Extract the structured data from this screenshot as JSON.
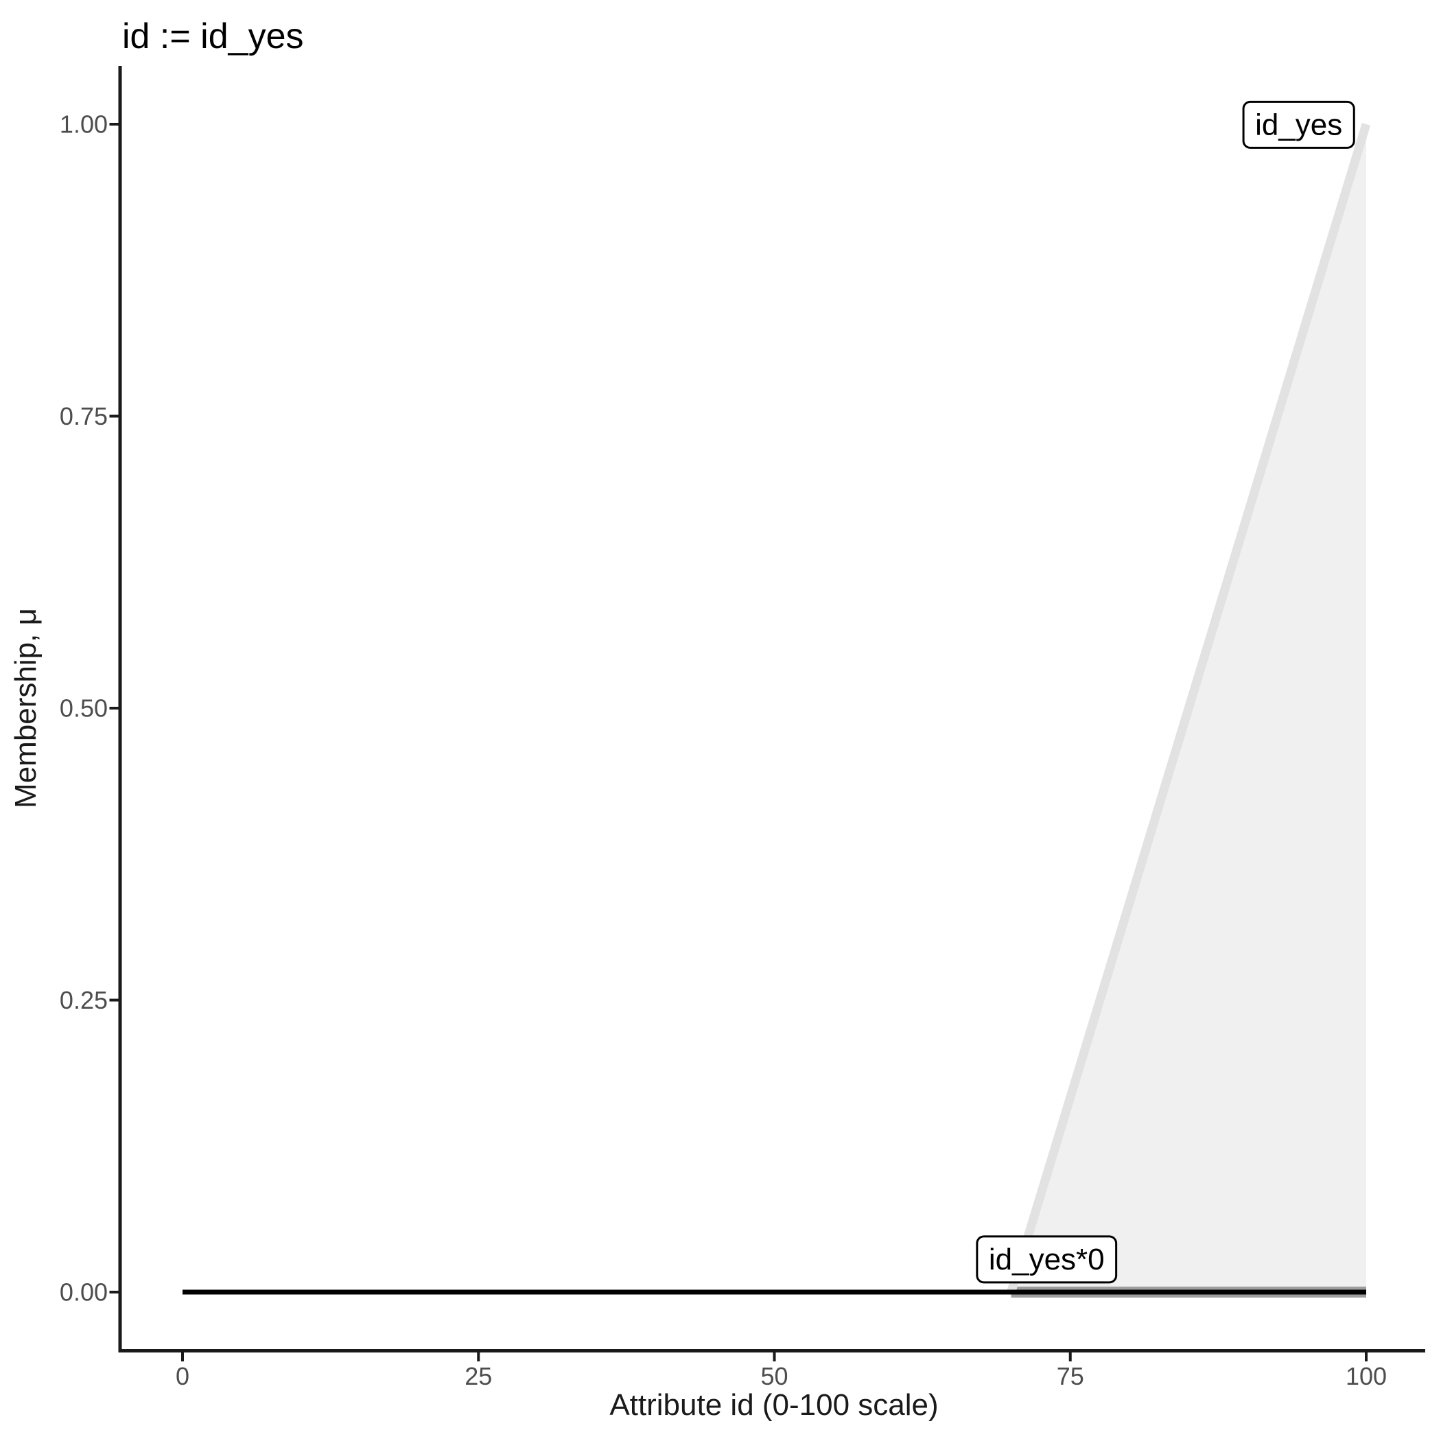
{
  "figure": {
    "title": "id := id_yes",
    "background": "#ffffff"
  },
  "colors": {
    "axis_line": "#1a1a1a",
    "tick_label": "#4d4d4d",
    "title_text": "#000000",
    "annotation_border": "#000000",
    "annotation_fill": "#ffffff"
  },
  "chart_data": {
    "type": "area",
    "title": "id := id_yes",
    "xlabel": "Attribute id (0-100 scale)",
    "ylabel": "Membership, μ",
    "xlim": [
      0,
      100
    ],
    "ylim": [
      0,
      1
    ],
    "x_ticks": [
      0,
      25,
      50,
      75,
      100
    ],
    "x_tick_labels": [
      "0",
      "25",
      "50",
      "75",
      "100"
    ],
    "y_ticks": [
      0,
      0.25,
      0.5,
      0.75,
      1
    ],
    "y_tick_labels": [
      "0.00",
      "0.25",
      "0.50",
      "0.75",
      "1.00"
    ],
    "grid": false,
    "legend_position": "none (direct boxed labels on plot)",
    "series": [
      {
        "name": "id_yes",
        "kind": "area",
        "description": "triangular membership function rising from 0 at x=70 to 1 at x=100, closed to baseline at x=100",
        "points": [
          [
            70,
            0
          ],
          [
            100,
            1
          ]
        ],
        "baseline_points": [
          [
            70,
            0
          ],
          [
            100,
            0
          ]
        ],
        "line_color": "#e2e2e2",
        "line_width": 13,
        "fill_color": "#f0f0f0",
        "base_color": "#9d9d9d",
        "base_width": 16
      },
      {
        "name": "id_yes*0",
        "kind": "line",
        "description": "constant zero membership over whole domain",
        "points": [
          [
            0,
            0
          ],
          [
            100,
            0
          ]
        ],
        "line_color": "#000000",
        "line_width": 7
      }
    ],
    "annotations": [
      {
        "label": "id_yes",
        "x": 94.3,
        "y": 1.0
      },
      {
        "label": "id_yes*0",
        "x": 73.0,
        "y": 0.0285
      }
    ]
  }
}
